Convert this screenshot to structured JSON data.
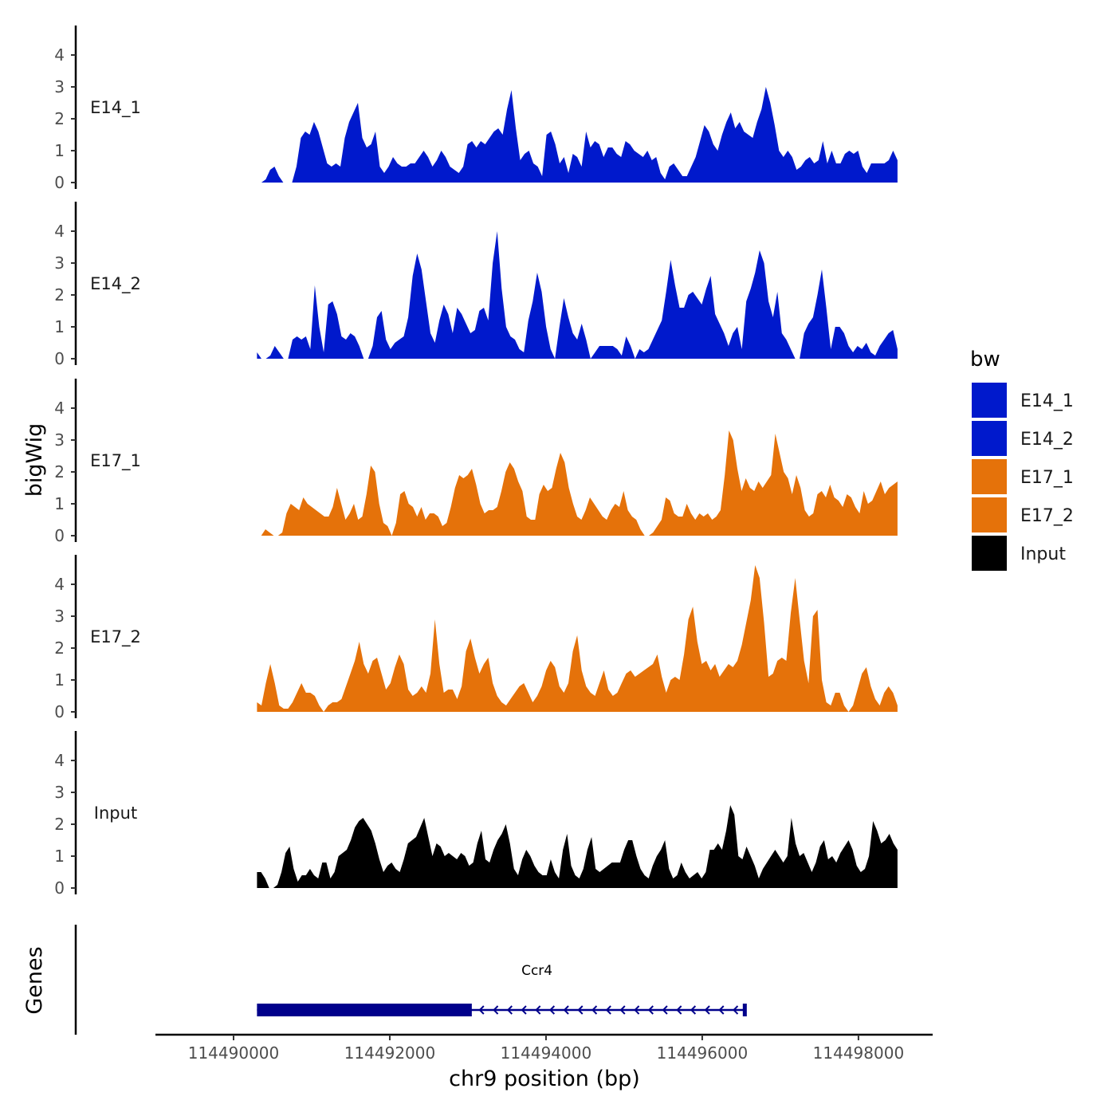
{
  "chart_data": {
    "type": "area",
    "y_axis_title": "bigWig",
    "x_axis_title": "chr9 position (bp)",
    "genes_axis_title": "Genes",
    "x_range": [
      114489000,
      114498950
    ],
    "data_extent": [
      114490300,
      114498500
    ],
    "y_range": [
      0,
      4.8
    ],
    "y_ticks": [
      0,
      1,
      2,
      3,
      4
    ],
    "x_ticks": [
      114490000,
      114492000,
      114494000,
      114496000,
      114498000
    ],
    "x_tick_labels": [
      "114490000",
      "114492000",
      "114494000",
      "114496000",
      "114498000"
    ],
    "legend": {
      "title": "bw",
      "entries": [
        {
          "label": "E14_1",
          "color": "#0019CC"
        },
        {
          "label": "E14_2",
          "color": "#0019CC"
        },
        {
          "label": "E17_1",
          "color": "#E5720A"
        },
        {
          "label": "E17_2",
          "color": "#E5720A"
        },
        {
          "label": "Input",
          "color": "#000000"
        }
      ]
    },
    "tracks": [
      {
        "name": "E14_1",
        "color": "#0019CC",
        "values": [
          0,
          0,
          0.1,
          0.4,
          0.5,
          0.2,
          0,
          0,
          0,
          0.5,
          1.4,
          1.6,
          1.5,
          1.9,
          1.6,
          1.1,
          0.6,
          0.5,
          0.6,
          0.5,
          1.4,
          1.9,
          2.2,
          2.5,
          1.4,
          1.1,
          1.2,
          1.6,
          0.5,
          0.3,
          0.5,
          0.8,
          0.6,
          0.5,
          0.5,
          0.6,
          0.6,
          0.8,
          1.0,
          0.8,
          0.5,
          0.7,
          1.0,
          0.8,
          0.5,
          0.4,
          0.3,
          0.5,
          1.2,
          1.3,
          1.1,
          1.3,
          1.2,
          1.4,
          1.6,
          1.7,
          1.5,
          2.3,
          2.9,
          1.7,
          0.7,
          0.9,
          1.0,
          0.6,
          0.5,
          0.2,
          1.5,
          1.6,
          1.2,
          0.6,
          0.8,
          0.3,
          0.9,
          0.8,
          0.5,
          1.6,
          1.1,
          1.3,
          1.2,
          0.8,
          1.1,
          1.1,
          0.9,
          0.8,
          1.3,
          1.2,
          1.0,
          0.9,
          0.8,
          1.0,
          0.7,
          0.8,
          0.3,
          0.1,
          0.5,
          0.6,
          0.4,
          0.2,
          0.2,
          0.5,
          0.8,
          1.3,
          1.8,
          1.6,
          1.2,
          1.0,
          1.5,
          1.9,
          2.2,
          1.7,
          1.9,
          1.6,
          1.5,
          1.4,
          1.9,
          2.3,
          3.0,
          2.5,
          1.8,
          1.0,
          0.8,
          1.0,
          0.8,
          0.4,
          0.5,
          0.7,
          0.8,
          0.6,
          0.7,
          1.3,
          0.6,
          1.0,
          0.6,
          0.6,
          0.9,
          1.0,
          0.9,
          1.0,
          0.5,
          0.3,
          0.6,
          0.6,
          0.6,
          0.6,
          0.7,
          1.0,
          0.7
        ]
      },
      {
        "name": "E14_2",
        "color": "#0019CC",
        "values": [
          0.2,
          0,
          0,
          0.1,
          0.4,
          0.2,
          0,
          0,
          0.6,
          0.7,
          0.6,
          0.7,
          0.3,
          2.3,
          1.0,
          0.2,
          1.7,
          1.8,
          1.4,
          0.7,
          0.6,
          0.8,
          0.7,
          0.4,
          0,
          0,
          0.4,
          1.3,
          1.5,
          0.6,
          0.3,
          0.5,
          0.6,
          0.7,
          1.3,
          2.6,
          3.3,
          2.8,
          1.8,
          0.8,
          0.5,
          1.2,
          1.7,
          1.4,
          0.8,
          1.6,
          1.4,
          1.1,
          0.8,
          0.9,
          1.5,
          1.6,
          1.2,
          3.0,
          4.0,
          2.2,
          1.0,
          0.7,
          0.6,
          0.3,
          0.2,
          1.2,
          1.8,
          2.7,
          2.1,
          1.0,
          0.3,
          0,
          1.0,
          1.9,
          1.3,
          0.8,
          0.6,
          1.1,
          0.6,
          0,
          0.2,
          0.4,
          0.4,
          0.4,
          0.4,
          0.3,
          0.1,
          0.7,
          0.4,
          0,
          0.3,
          0.2,
          0.3,
          0.6,
          0.9,
          1.2,
          2.1,
          3.1,
          2.3,
          1.6,
          1.6,
          2.0,
          2.1,
          1.9,
          1.7,
          2.2,
          2.6,
          1.4,
          1.1,
          0.8,
          0.4,
          0.8,
          1.0,
          0.3,
          1.8,
          2.2,
          2.7,
          3.4,
          3.0,
          1.8,
          1.3,
          2.1,
          0.8,
          0.6,
          0.3,
          0,
          0,
          0.8,
          1.1,
          1.3,
          2.0,
          2.8,
          1.6,
          0.3,
          1.0,
          1.0,
          0.8,
          0.4,
          0.2,
          0.4,
          0.3,
          0.5,
          0.2,
          0.1,
          0.4,
          0.6,
          0.8,
          0.9,
          0.3
        ]
      },
      {
        "name": "E17_1",
        "color": "#E5720A",
        "values": [
          0,
          0,
          0.2,
          0.1,
          0,
          0,
          0.1,
          0.7,
          1.0,
          0.9,
          0.8,
          1.2,
          1.0,
          0.9,
          0.8,
          0.7,
          0.6,
          0.6,
          0.9,
          1.5,
          1.0,
          0.5,
          0.7,
          1.0,
          0.5,
          0.6,
          1.3,
          2.2,
          2.0,
          1.0,
          0.4,
          0.3,
          0,
          0.4,
          1.3,
          1.4,
          1.0,
          0.9,
          0.6,
          0.9,
          0.5,
          0.7,
          0.7,
          0.6,
          0.3,
          0.4,
          0.9,
          1.5,
          1.9,
          1.8,
          1.9,
          2.1,
          1.6,
          1.0,
          0.7,
          0.8,
          0.8,
          0.9,
          1.4,
          2.0,
          2.3,
          2.1,
          1.7,
          1.4,
          0.6,
          0.5,
          0.5,
          1.3,
          1.6,
          1.4,
          1.5,
          2.1,
          2.6,
          2.3,
          1.5,
          1.0,
          0.6,
          0.5,
          0.8,
          1.2,
          1.0,
          0.8,
          0.6,
          0.5,
          0.8,
          1.0,
          0.9,
          1.4,
          0.8,
          0.6,
          0.5,
          0.2,
          0,
          0,
          0.1,
          0.3,
          0.5,
          1.2,
          1.1,
          0.7,
          0.6,
          0.6,
          1.0,
          0.7,
          0.5,
          0.7,
          0.6,
          0.7,
          0.5,
          0.6,
          0.8,
          1.9,
          3.3,
          3.0,
          2.1,
          1.4,
          1.8,
          1.5,
          1.4,
          1.7,
          1.5,
          1.7,
          1.9,
          3.2,
          2.6,
          2.0,
          1.8,
          1.3,
          1.9,
          1.5,
          0.8,
          0.6,
          0.7,
          1.3,
          1.4,
          1.2,
          1.6,
          1.2,
          1.1,
          0.9,
          1.3,
          1.2,
          0.9,
          0.7,
          1.4,
          1.0,
          1.1,
          1.4,
          1.7,
          1.3,
          1.5,
          1.6,
          1.7
        ]
      },
      {
        "name": "E17_2",
        "color": "#E5720A",
        "values": [
          0.3,
          0.2,
          0.9,
          1.5,
          0.9,
          0.2,
          0.1,
          0.1,
          0.3,
          0.6,
          0.9,
          0.6,
          0.6,
          0.5,
          0.2,
          0,
          0.2,
          0.3,
          0.3,
          0.4,
          0.8,
          1.2,
          1.6,
          2.2,
          1.5,
          1.2,
          1.6,
          1.7,
          1.2,
          0.7,
          0.9,
          1.4,
          1.8,
          1.5,
          0.7,
          0.5,
          0.6,
          0.8,
          0.6,
          1.2,
          2.9,
          1.5,
          0.6,
          0.7,
          0.7,
          0.4,
          0.8,
          1.9,
          2.3,
          1.7,
          1.2,
          1.5,
          1.7,
          0.9,
          0.5,
          0.3,
          0.2,
          0.4,
          0.6,
          0.8,
          0.9,
          0.6,
          0.3,
          0.5,
          0.8,
          1.3,
          1.6,
          1.4,
          0.8,
          0.6,
          0.9,
          1.9,
          2.4,
          1.3,
          0.8,
          0.6,
          0.5,
          0.9,
          1.3,
          0.7,
          0.5,
          0.6,
          0.9,
          1.2,
          1.3,
          1.1,
          1.2,
          1.3,
          1.4,
          1.5,
          1.8,
          1.1,
          0.6,
          1.0,
          1.1,
          1.0,
          1.8,
          2.9,
          3.3,
          2.2,
          1.5,
          1.6,
          1.3,
          1.5,
          1.1,
          1.3,
          1.5,
          1.4,
          1.6,
          2.1,
          2.8,
          3.5,
          4.6,
          4.2,
          2.8,
          1.1,
          1.2,
          1.6,
          1.7,
          1.6,
          3.1,
          4.2,
          2.9,
          1.6,
          0.9,
          3.0,
          3.2,
          1.0,
          0.3,
          0.2,
          0.6,
          0.6,
          0.2,
          0,
          0.2,
          0.7,
          1.2,
          1.4,
          0.8,
          0.4,
          0.2,
          0.6,
          0.8,
          0.6,
          0.2
        ]
      },
      {
        "name": "Input",
        "color": "#000000",
        "values": [
          0.5,
          0.5,
          0.3,
          0,
          0,
          0.1,
          0.5,
          1.1,
          1.3,
          0.6,
          0.2,
          0.4,
          0.4,
          0.6,
          0.4,
          0.3,
          0.8,
          0.8,
          0.3,
          0.5,
          1.0,
          1.1,
          1.2,
          1.5,
          1.9,
          2.1,
          2.2,
          2.0,
          1.8,
          1.4,
          0.9,
          0.5,
          0.7,
          0.8,
          0.6,
          0.5,
          0.9,
          1.4,
          1.5,
          1.6,
          1.9,
          2.2,
          1.6,
          1.0,
          1.4,
          1.3,
          1.0,
          1.1,
          1.0,
          0.9,
          1.1,
          1.0,
          0.7,
          0.8,
          1.4,
          1.8,
          0.9,
          0.8,
          1.2,
          1.5,
          1.7,
          2.0,
          1.4,
          0.6,
          0.4,
          0.9,
          1.2,
          1.0,
          0.7,
          0.5,
          0.4,
          0.4,
          0.9,
          0.5,
          0.3,
          1.2,
          1.7,
          0.7,
          0.4,
          0.3,
          0.6,
          1.2,
          1.6,
          0.6,
          0.5,
          0.6,
          0.7,
          0.8,
          0.8,
          0.8,
          1.2,
          1.5,
          1.5,
          1.0,
          0.6,
          0.4,
          0.3,
          0.7,
          1.0,
          1.2,
          1.5,
          0.6,
          0.3,
          0.4,
          0.8,
          0.5,
          0.3,
          0.4,
          0.5,
          0.3,
          0.5,
          1.2,
          1.2,
          1.4,
          1.2,
          1.8,
          2.6,
          2.3,
          1.0,
          0.9,
          1.3,
          1.0,
          0.7,
          0.3,
          0.6,
          0.8,
          1.0,
          1.2,
          1.0,
          0.8,
          1.0,
          2.2,
          1.4,
          1.0,
          1.1,
          0.8,
          0.5,
          0.8,
          1.3,
          1.5,
          0.9,
          1.0,
          0.8,
          1.1,
          1.3,
          1.5,
          1.2,
          0.7,
          0.5,
          0.6,
          1.0,
          2.1,
          1.8,
          1.4,
          1.5,
          1.7,
          1.4,
          1.2
        ]
      }
    ],
    "genes": [
      {
        "name": "Ccr4",
        "strand": "-",
        "start": 114490300,
        "end": 114496550,
        "cds_start": 114490300,
        "cds_end": 114493050
      }
    ]
  }
}
